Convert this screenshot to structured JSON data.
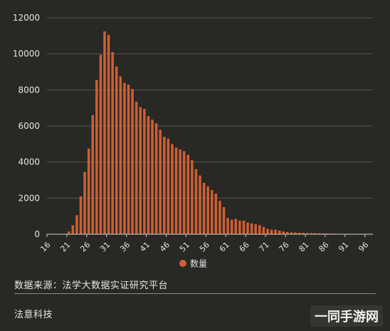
{
  "chart_data": {
    "type": "bar",
    "title": "",
    "xlabel": "",
    "ylabel": "",
    "ylim": [
      0,
      12000
    ],
    "yticks": [
      0,
      2000,
      4000,
      6000,
      8000,
      10000,
      12000
    ],
    "xtick_labels": [
      16,
      21,
      26,
      31,
      36,
      41,
      46,
      51,
      56,
      61,
      66,
      71,
      76,
      81,
      86,
      91,
      96
    ],
    "grid": "horizontal",
    "legend_position": "bottom-center",
    "series": [
      {
        "name": "数量",
        "color": "#cf5f33",
        "x": [
          16,
          17,
          18,
          19,
          20,
          21,
          22,
          23,
          24,
          25,
          26,
          27,
          28,
          29,
          30,
          31,
          32,
          33,
          34,
          35,
          36,
          37,
          38,
          39,
          40,
          41,
          42,
          43,
          44,
          45,
          46,
          47,
          48,
          49,
          50,
          51,
          52,
          53,
          54,
          55,
          56,
          57,
          58,
          59,
          60,
          61,
          62,
          63,
          64,
          65,
          66,
          67,
          68,
          69,
          70,
          71,
          72,
          73,
          74,
          75,
          76,
          77,
          78,
          79,
          80,
          81,
          82,
          83,
          84,
          85,
          86,
          87,
          88,
          89,
          90,
          91,
          92,
          93,
          94,
          95,
          96,
          97
        ],
        "values": [
          0,
          0,
          0,
          0,
          0,
          150,
          500,
          1050,
          2100,
          3450,
          4750,
          6600,
          8550,
          9950,
          11250,
          11050,
          10100,
          9300,
          8750,
          8400,
          8300,
          8050,
          7350,
          7050,
          6950,
          6550,
          6350,
          6150,
          5800,
          5400,
          5300,
          5000,
          4800,
          4700,
          4600,
          4400,
          4100,
          3600,
          3250,
          2850,
          2650,
          2450,
          2250,
          1850,
          1500,
          900,
          800,
          850,
          750,
          750,
          650,
          600,
          550,
          500,
          400,
          300,
          250,
          250,
          200,
          150,
          120,
          100,
          100,
          80,
          80,
          60,
          60,
          50,
          50,
          40,
          40,
          30,
          30,
          20,
          20,
          15,
          15,
          10,
          10,
          10,
          10,
          5
        ]
      }
    ]
  },
  "footer": {
    "source": "数据来源：法学大数据实证研究平台",
    "org": "法意科技",
    "watermark": "一同手游网"
  },
  "colors": {
    "background": "#282825",
    "bar": "#cf5f33",
    "grid": "#55554f",
    "text": "#e6e6e0"
  }
}
